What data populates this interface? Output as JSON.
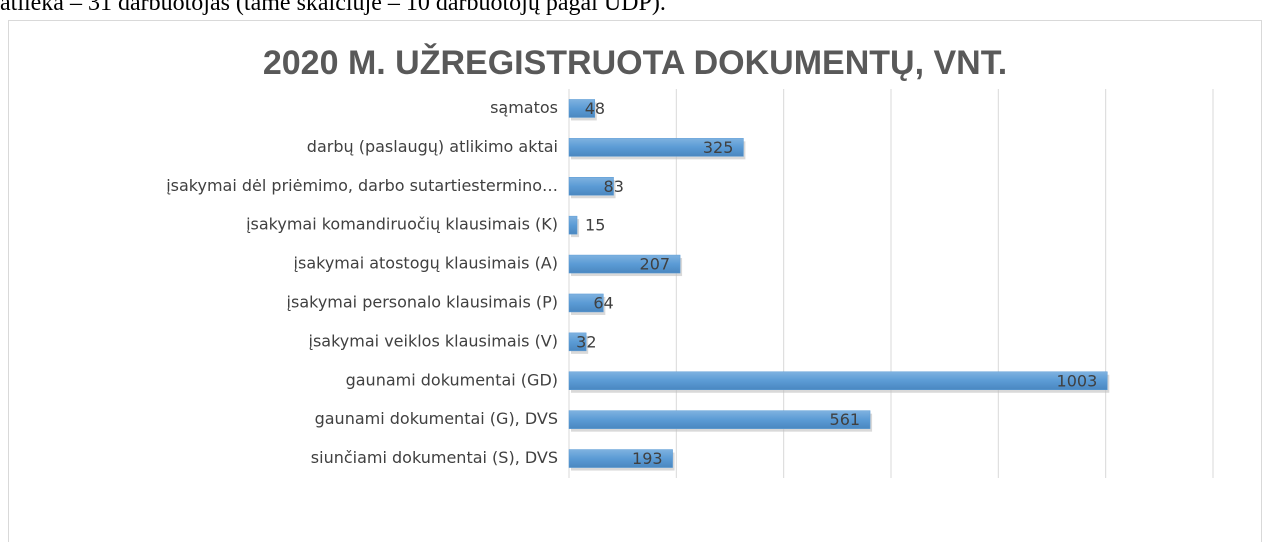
{
  "document_text": "atlieka – 31 darbuotojas (tame skaičiuje – 10 darbuotojų pagal UDP).",
  "chart_data": {
    "type": "barh",
    "title": "2020 M. UŽREGISTRUOTA DOKUMENTŲ, VNT.",
    "categories": [
      "sąmatos",
      "darbų (paslaugų) atlikimo aktai",
      "įsakymai dėl priėmimo, darbo sutartiestermino…",
      "įsakymai komandiruočių klausimais (K)",
      "įsakymai atostogų klausimais (A)",
      "įsakymai personalo klausimais (P)",
      "įsakymai veiklos klausimais (V)",
      "gaunami dokumentai (GD)",
      "gaunami dokumentai (G), DVS",
      "siunčiami dokumentai (S), DVS"
    ],
    "values": [
      48,
      325,
      83,
      15,
      207,
      64,
      32,
      1003,
      561,
      193
    ],
    "color": "#5b9bd5",
    "xlim": [
      0,
      1200
    ],
    "xticks": [
      0,
      200,
      400,
      600,
      800,
      1000,
      1200
    ],
    "grid": true
  }
}
